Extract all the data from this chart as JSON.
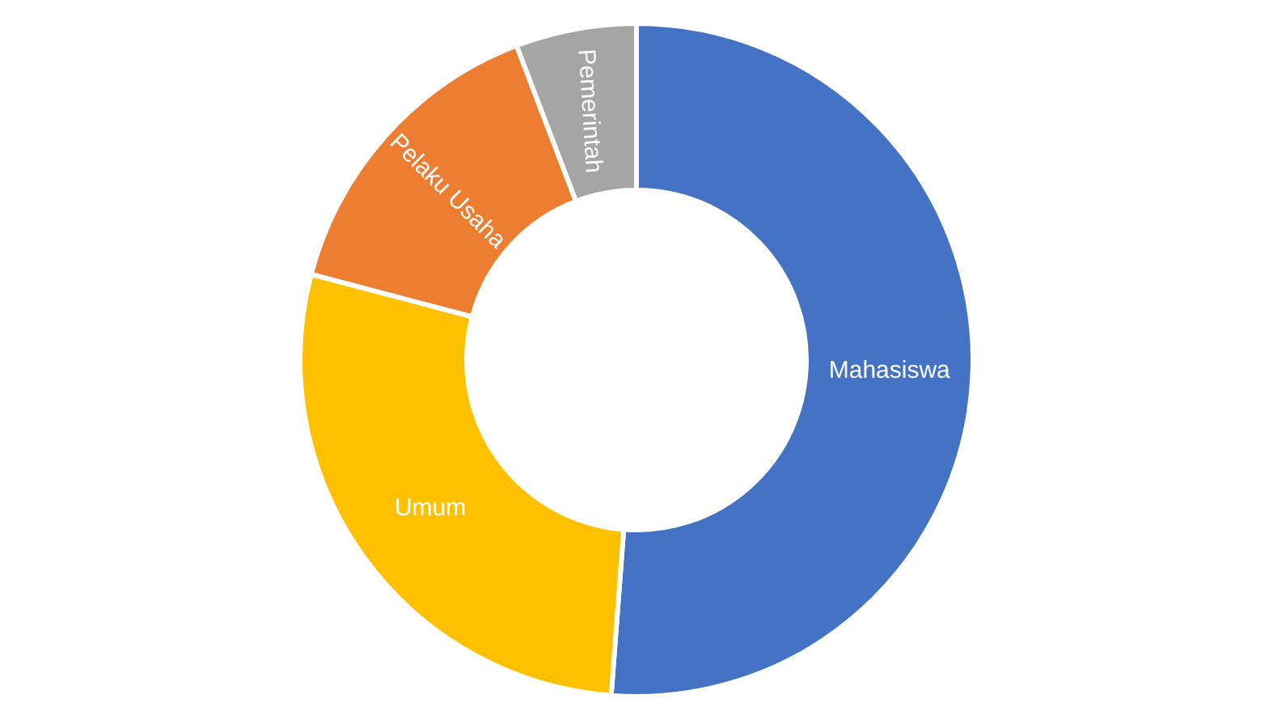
{
  "chart_data": {
    "type": "donut",
    "categories": [
      "Mahasiswa",
      "Umum",
      "Pelaku Usaha",
      "Pemerintah"
    ],
    "values": [
      51.2,
      27.9,
      15.1,
      5.8
    ],
    "colors": [
      "#4472c4",
      "#ffc000",
      "#ed7d31",
      "#a5a5a5"
    ],
    "legend": false
  }
}
